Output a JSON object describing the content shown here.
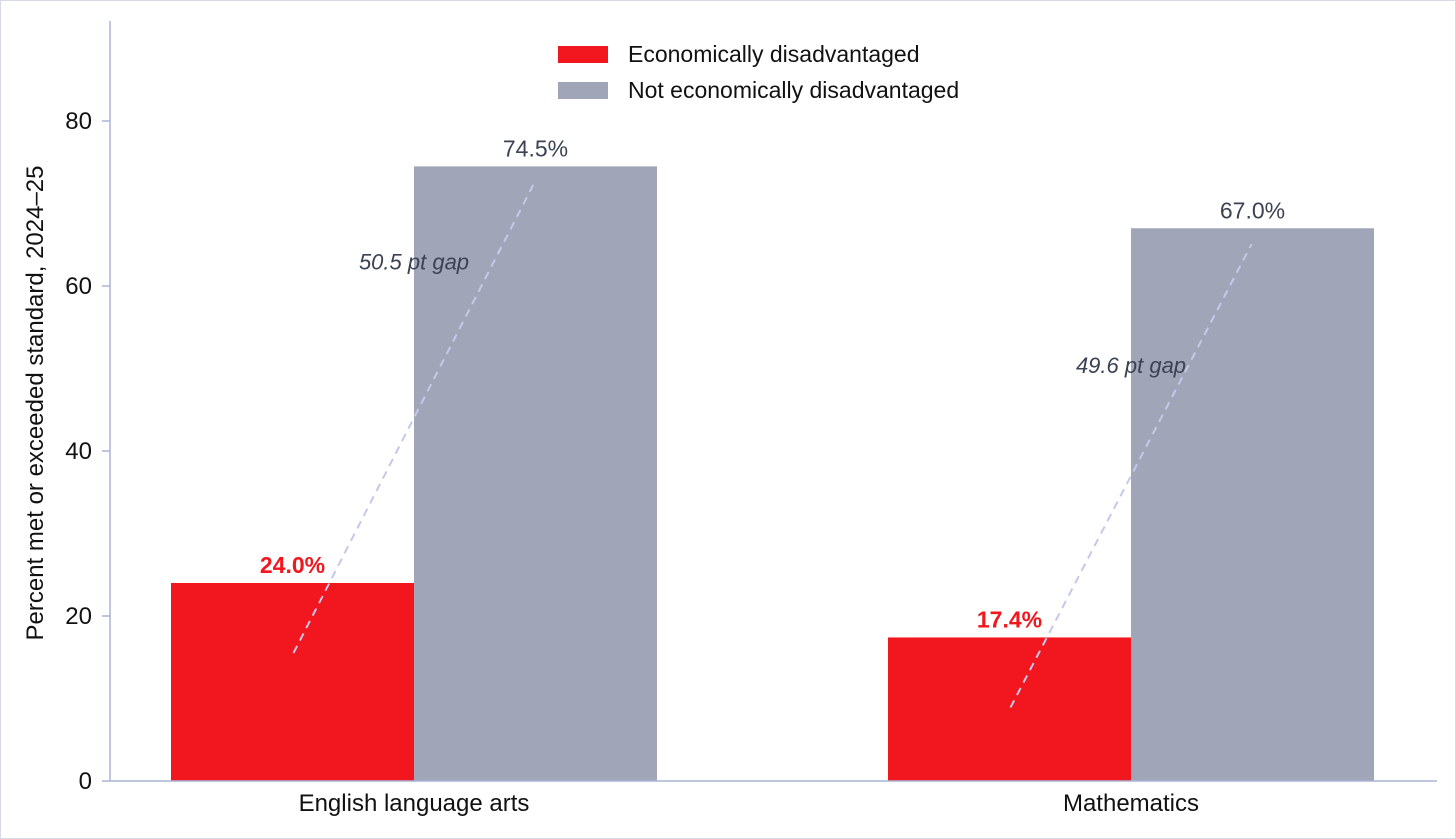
{
  "chart_data": {
    "type": "bar",
    "categories": [
      "English language arts",
      "Mathematics"
    ],
    "series": [
      {
        "name": "Economically disadvantaged",
        "values": [
          24.0,
          17.4
        ],
        "labels": [
          "24.0%",
          "17.4%"
        ],
        "color": "#f2161e"
      },
      {
        "name": "Not economically disadvantaged",
        "values": [
          74.5,
          67.0
        ],
        "labels": [
          "74.5%",
          "67.0%"
        ],
        "color": "#a0a6b8"
      }
    ],
    "annotations": [
      "50.5 pt gap",
      "49.6 pt gap"
    ],
    "ylabel": "Percent met or exceeded standard, 2024–25",
    "xlabel": "",
    "ylim": [
      0,
      92
    ],
    "yticks": [
      0,
      20,
      40,
      60,
      80
    ],
    "grid": false,
    "legend_placement": "top-center",
    "colors": {
      "axis": "#aab3d6",
      "gap_line": "#c5c8ea",
      "ned_label": "#3b4252"
    }
  }
}
